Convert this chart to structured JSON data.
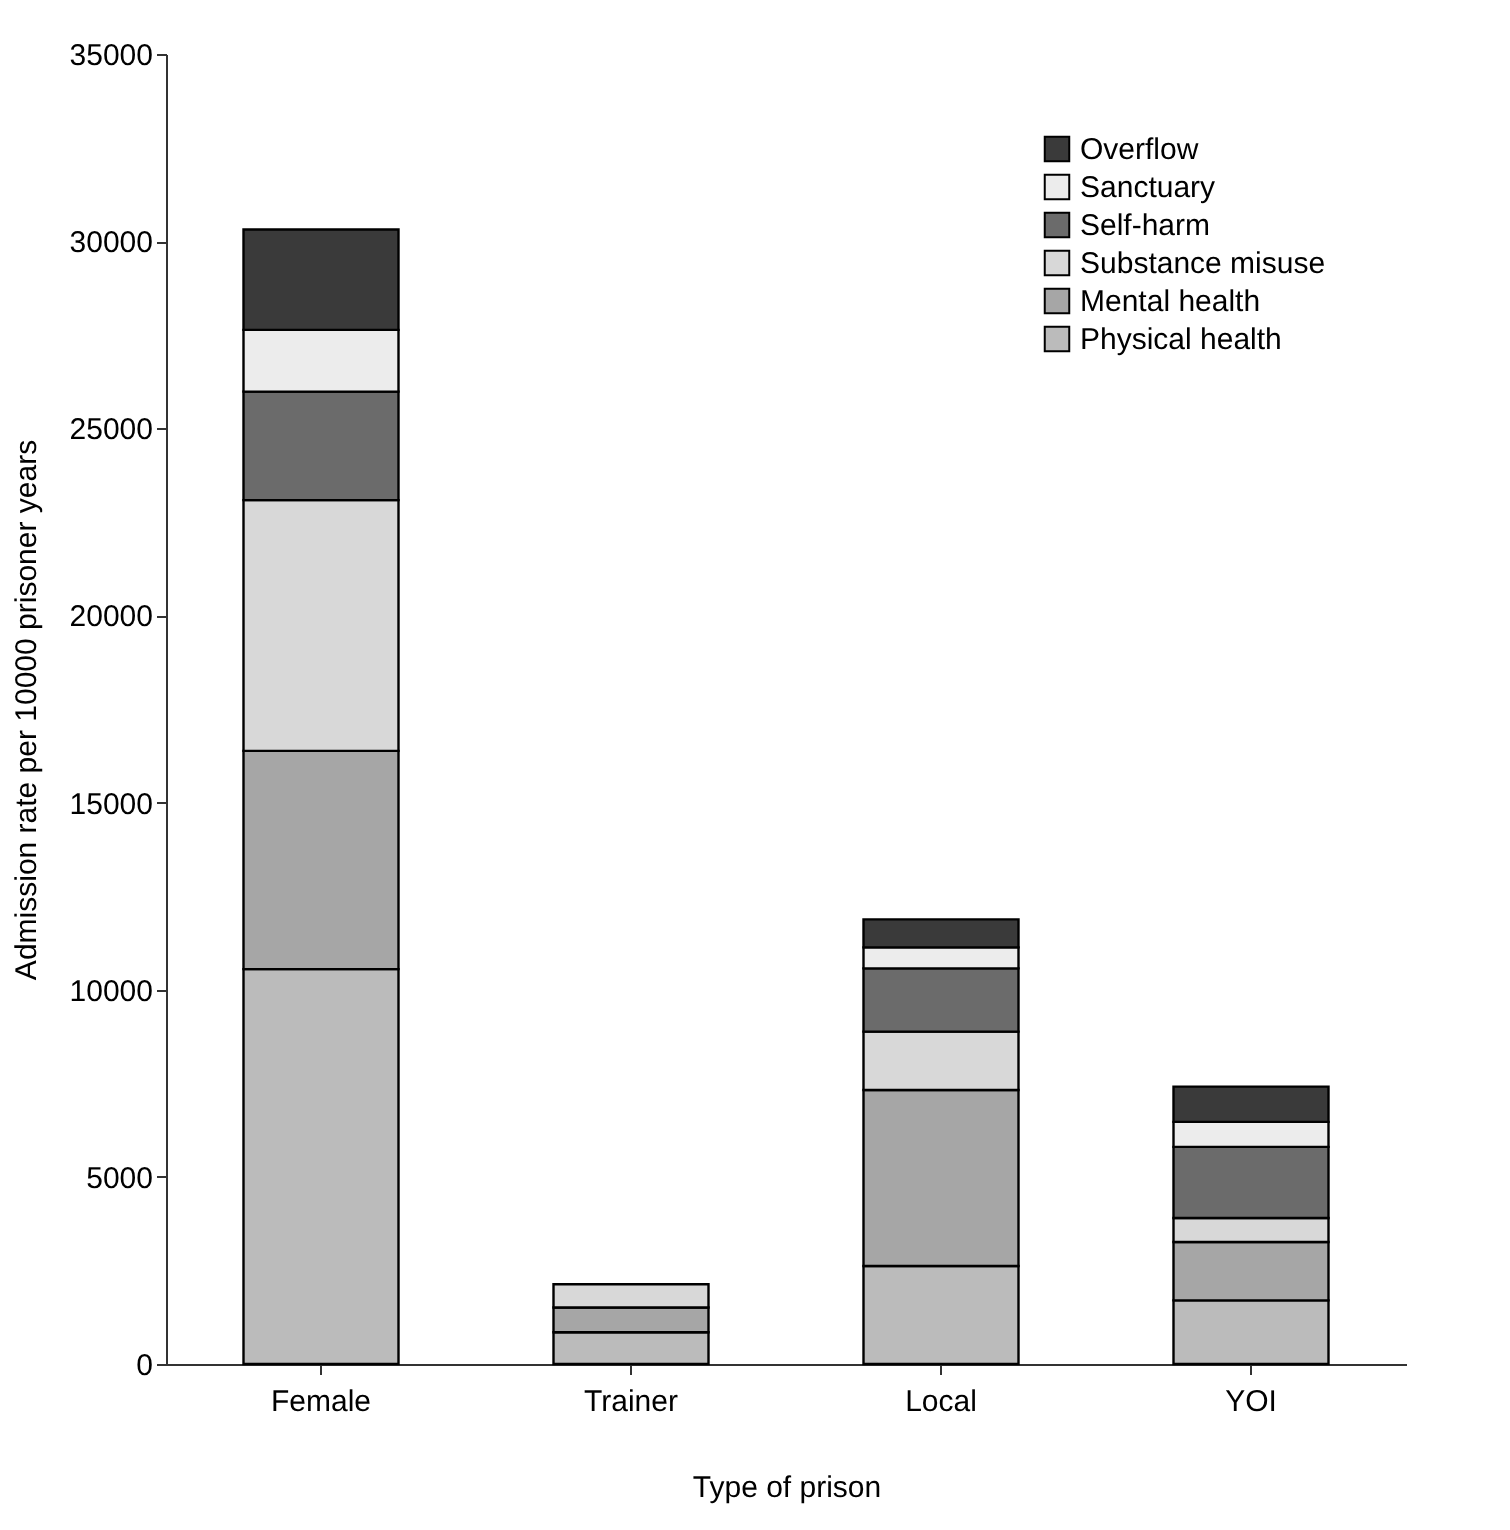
{
  "chart_data": {
    "type": "bar",
    "stacked": true,
    "xlabel": "Type of prison",
    "ylabel": "Admission rate per 10000 prisoner years",
    "categories": [
      "Female",
      "Trainer",
      "Local",
      "YOI"
    ],
    "series": [
      {
        "name": "Physical health",
        "color": "#bbbbbb",
        "values": [
          10550,
          850,
          2620,
          1700
        ]
      },
      {
        "name": "Mental health",
        "color": "#a6a6a6",
        "values": [
          5830,
          660,
          4700,
          1560
        ]
      },
      {
        "name": "Substance misuse",
        "color": "#d8d8d8",
        "values": [
          6700,
          620,
          1560,
          640
        ]
      },
      {
        "name": "Self-harm",
        "color": "#6b6b6b",
        "values": [
          2900,
          null,
          1690,
          1900
        ]
      },
      {
        "name": "Sanctuary",
        "color": "#ececec",
        "values": [
          1650,
          null,
          560,
          670
        ]
      },
      {
        "name": "Overflow",
        "color": "#3a3a3a",
        "values": [
          2680,
          null,
          750,
          940
        ]
      }
    ],
    "ylim": [
      0,
      35000
    ],
    "yticks": [
      0,
      5000,
      10000,
      15000,
      20000,
      25000,
      30000,
      35000
    ],
    "grid": false,
    "legend": "top right"
  }
}
